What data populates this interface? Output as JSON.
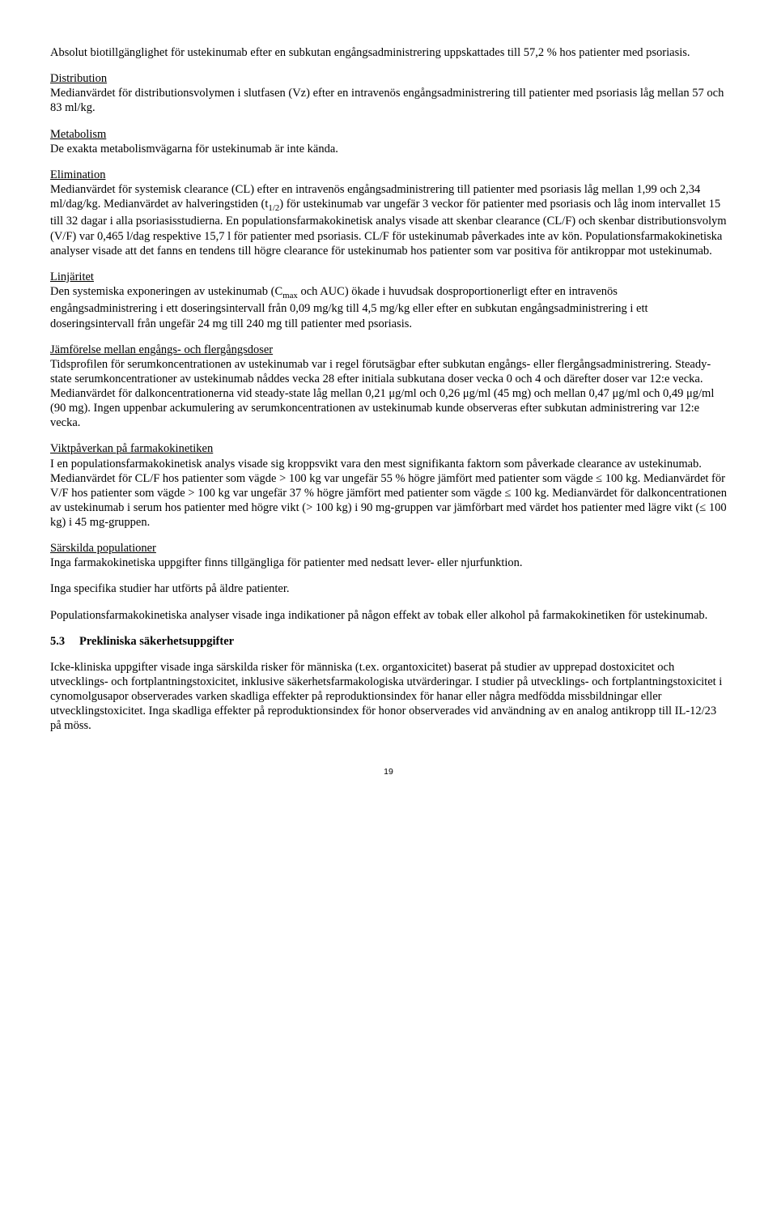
{
  "intro": "Absolut biotillgänglighet för ustekinumab efter en subkutan engångsadministrering uppskattades till 57,2 % hos patienter med psoriasis.",
  "distribution": {
    "heading": "Distribution",
    "body": "Medianvärdet för distributionsvolymen i slutfasen (Vz) efter en intravenös engångsadministrering till patienter med psoriasis låg mellan 57 och 83 ml/kg."
  },
  "metabolism": {
    "heading": "Metabolism",
    "body": "De exakta metabolismvägarna för ustekinumab är inte kända."
  },
  "elimination": {
    "heading": "Elimination",
    "body_pre": "Medianvärdet för systemisk clearance (CL) efter en intravenös engångsadministrering till patienter med psoriasis låg mellan 1,99 och 2,34 ml/dag/kg. Medianvärdet av halveringstiden (t",
    "body_sub": "1/2",
    "body_post": ") för ustekinumab var ungefär 3 veckor för patienter med psoriasis och låg inom intervallet 15 till 32 dagar i alla psoriasisstudierna. En populationsfarmakokinetisk analys visade att skenbar clearance (CL/F) och skenbar distributionsvolym (V/F) var 0,465 l/dag respektive 15,7 l för patienter med psoriasis. CL/F för ustekinumab påverkades inte av kön. Populationsfarmakokinetiska analyser visade att det fanns en tendens till högre clearance för ustekinumab hos patienter som var positiva för antikroppar mot ustekinumab."
  },
  "linearity": {
    "heading": "Linjäritet",
    "body_pre": "Den systemiska exponeringen av ustekinumab (C",
    "body_sub": "max",
    "body_post": " och AUC) ökade i huvudsak dosproportionerligt efter en intravenös engångsadministrering i ett doseringsintervall från 0,09 mg/kg till 4,5 mg/kg eller efter en subkutan engångsadministrering i ett doseringsintervall från ungefär 24 mg till 240 mg till patienter med psoriasis."
  },
  "comparison": {
    "heading": "Jämförelse mellan engångs- och flergångsdoser",
    "body": "Tidsprofilen för serumkoncentrationen av ustekinumab var i regel förutsägbar efter subkutan engångs- eller flergångsadministrering. Steady-state serumkoncentrationer av ustekinumab nåddes vecka 28 efter initiala subkutana doser vecka 0 och 4 och därefter doser var 12:e vecka. Medianvärdet för dalkoncentrationerna vid steady-state låg mellan 0,21 μg/ml och 0,26 μg/ml (45 mg) och mellan 0,47 μg/ml och 0,49 μg/ml (90 mg). Ingen uppenbar ackumulering av serumkoncentrationen av ustekinumab kunde observeras efter subkutan administrering var 12:e vecka."
  },
  "weight": {
    "heading": "Viktpåverkan på farmakokinetiken",
    "body": "I en populationsfarmakokinetisk analys visade sig kroppsvikt vara den mest signifikanta faktorn som påverkade clearance av ustekinumab. Medianvärdet för CL/F hos patienter som vägde > 100 kg var ungefär 55 % högre jämfört med patienter som vägde ≤ 100 kg. Medianvärdet för V/F hos patienter som vägde > 100 kg var ungefär 37 % högre jämfört med patienter som vägde ≤ 100 kg. Medianvärdet för dalkoncentrationen av ustekinumab i serum hos patienter med högre vikt (> 100 kg) i 90 mg-gruppen var jämförbart med värdet hos patienter med lägre vikt (≤ 100 kg) i 45 mg-gruppen."
  },
  "special": {
    "heading": "Särskilda populationer",
    "p1": "Inga farmakokinetiska uppgifter finns tillgängliga för patienter med nedsatt lever- eller njurfunktion.",
    "p2": "Inga specifika studier har utförts på äldre patienter.",
    "p3": "Populationsfarmakokinetiska analyser visade inga indikationer på någon effekt av tobak eller alkohol på farmakokinetiken för ustekinumab."
  },
  "section53": {
    "num": "5.3",
    "title": "Prekliniska säkerhetsuppgifter",
    "body": "Icke-kliniska uppgifter visade inga särskilda risker för människa (t.ex. organtoxicitet) baserat på studier av upprepad dostoxicitet och utvecklings- och fortplantningstoxicitet, inklusive säkerhetsfarmakologiska utvärderingar. I studier på utvecklings- och fortplantningstoxicitet i cynomolgusapor observerades varken skadliga effekter på reproduktionsindex för hanar eller några medfödda missbildningar eller utvecklingstoxicitet. Inga skadliga effekter på reproduktionsindex för honor observerades vid användning av en analog antikropp till IL-12/23 på möss."
  },
  "pageNumber": "19"
}
